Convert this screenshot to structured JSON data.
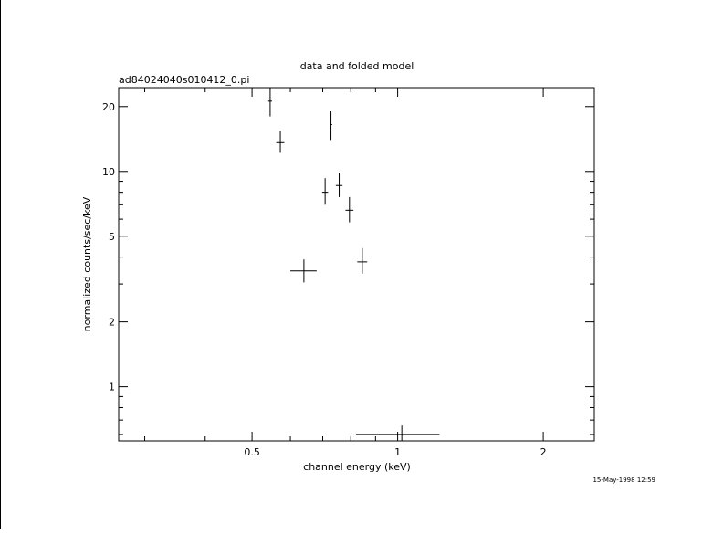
{
  "chart_data": {
    "type": "scatter",
    "title": "data and folded model",
    "subtitle": "ad84024040s010412_0.pi",
    "xlabel": "channel energy (keV)",
    "ylabel": "normalized counts/sec/keV",
    "xscale": "log",
    "yscale": "log",
    "xlim": [
      0.265,
      2.55
    ],
    "ylim": [
      0.56,
      24.5
    ],
    "x_ticks": [
      {
        "v": 0.5,
        "label": "0.5"
      },
      {
        "v": 1,
        "label": "1"
      },
      {
        "v": 2,
        "label": "2"
      }
    ],
    "y_ticks": [
      {
        "v": 1,
        "label": "1"
      },
      {
        "v": 2,
        "label": "2"
      },
      {
        "v": 5,
        "label": "5"
      },
      {
        "v": 10,
        "label": "10"
      },
      {
        "v": 20,
        "label": "20"
      }
    ],
    "series": [
      {
        "points": [
          {
            "x": 0.545,
            "xerr": 0.005,
            "y": 21.2,
            "ylo": 18.0,
            "yhi": 24.5
          },
          {
            "x": 0.572,
            "xerr": 0.011,
            "y": 13.6,
            "ylo": 12.2,
            "yhi": 15.4
          },
          {
            "x": 0.64,
            "xerr": 0.04,
            "y": 3.45,
            "ylo": 3.05,
            "yhi": 3.9
          },
          {
            "x": 0.708,
            "xerr": 0.01,
            "y": 8.0,
            "ylo": 7.0,
            "yhi": 9.3
          },
          {
            "x": 0.728,
            "xerr": 0.004,
            "y": 16.5,
            "ylo": 14.0,
            "yhi": 19.0
          },
          {
            "x": 0.757,
            "xerr": 0.012,
            "y": 8.6,
            "ylo": 7.6,
            "yhi": 9.8
          },
          {
            "x": 0.795,
            "xerr": 0.015,
            "y": 6.6,
            "ylo": 5.8,
            "yhi": 7.6
          },
          {
            "x": 0.845,
            "xerr": 0.02,
            "y": 3.8,
            "ylo": 3.35,
            "yhi": 4.4
          },
          {
            "x": 1.02,
            "xerr": 0.2,
            "y": 0.6,
            "ylo": 0.56,
            "yhi": 0.66
          }
        ]
      }
    ]
  },
  "timestamp": "15-May-1998 12:59"
}
